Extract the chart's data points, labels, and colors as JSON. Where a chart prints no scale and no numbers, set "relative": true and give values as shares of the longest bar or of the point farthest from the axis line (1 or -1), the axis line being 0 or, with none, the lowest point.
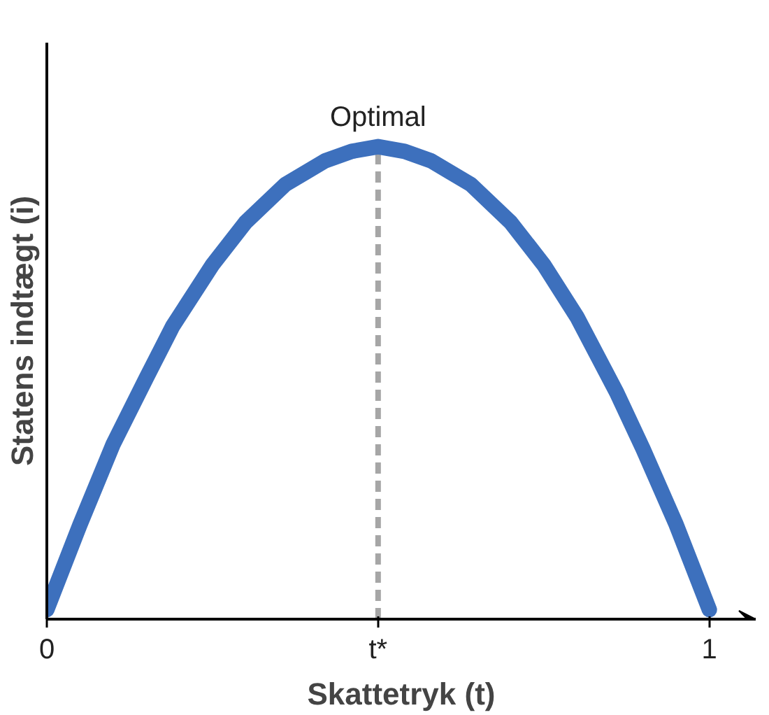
{
  "chart_data": {
    "type": "line",
    "relative": true,
    "xlabel": "Skattetryk (t)",
    "ylabel": "Statens indtægt (i)",
    "x": [
      0,
      0.05,
      0.1,
      0.15,
      0.19,
      0.25,
      0.3,
      0.36,
      0.42,
      0.46,
      0.5,
      0.54,
      0.58,
      0.64,
      0.7,
      0.75,
      0.8,
      0.86,
      0.9,
      0.95,
      1
    ],
    "series": [
      {
        "color": "#3d70bd",
        "values": [
          0.02,
          0.2,
          0.37,
          0.51,
          0.62,
          0.75,
          0.84,
          0.92,
          0.97,
          0.99,
          1,
          0.99,
          0.97,
          0.92,
          0.84,
          0.75,
          0.64,
          0.48,
          0.36,
          0.2,
          0.02
        ]
      }
    ],
    "xlim": [
      0,
      1.07
    ],
    "xticks": [
      0,
      {
        "value": 0.5,
        "label": "t*"
      },
      1
    ],
    "ref_lines": [
      {
        "axis": "x",
        "value": 0.5,
        "color": "#a6a6a6",
        "line_style": "dashed"
      }
    ],
    "annotations": [
      {
        "text": "Optimal",
        "x": 0.5,
        "y": 1
      }
    ],
    "grid": false,
    "line_style": "solid"
  }
}
